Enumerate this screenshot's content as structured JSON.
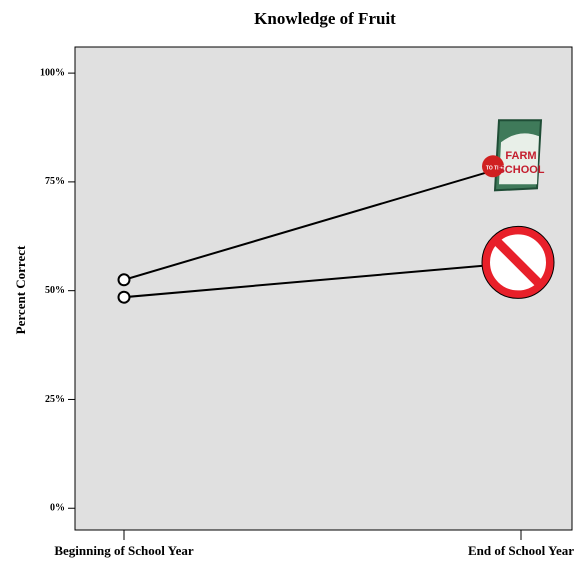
{
  "chart_data": {
    "type": "line",
    "title": "Knowledge of Fruit",
    "ylabel": "Percent Correct",
    "categories": [
      "Beginning of School Year",
      "End of School Year"
    ],
    "series": [
      {
        "color": "#000000",
        "values": [
          52.5,
          79.5
        ]
      },
      {
        "color": "#000000",
        "values": [
          48.5,
          56.5
        ]
      }
    ],
    "ylim": [
      -5,
      106
    ],
    "yticks": [
      {
        "value": 0,
        "label": "0%"
      },
      {
        "value": 25,
        "label": "25%"
      },
      {
        "value": 50,
        "label": "50%"
      },
      {
        "value": 75,
        "label": "75%"
      },
      {
        "value": 100,
        "label": "100%"
      }
    ],
    "annotations": [
      "FARM",
      "TO THE",
      "SCHOOL"
    ],
    "background": "#e0e0e0"
  }
}
